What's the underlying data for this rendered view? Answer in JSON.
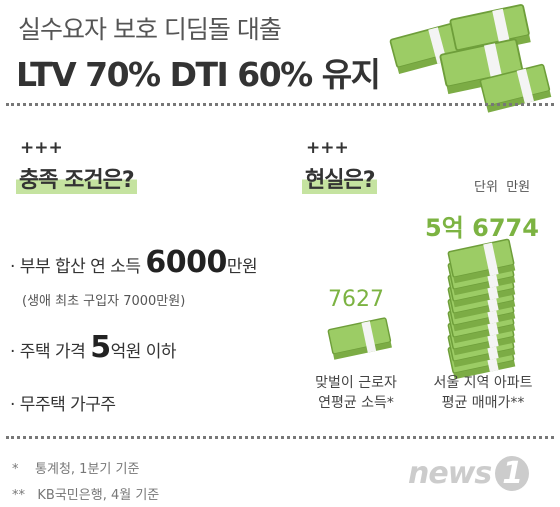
{
  "header": {
    "title_line1": "실수요자 보호 디딤돌 대출",
    "title_line2": "LTV 70% DTI 60% 유지"
  },
  "conditions": {
    "marker": "+++",
    "heading": "충족 조건은?",
    "items": [
      {
        "prefix": "· 부부 합산 연 소득",
        "highlight": "6000",
        "suffix": "만원",
        "note": "(생애 최초 구입자 7000만원)"
      },
      {
        "prefix": "· 주택 가격",
        "highlight": "5",
        "suffix": "억원 이하"
      },
      {
        "prefix": "· 무주택 가구주"
      }
    ]
  },
  "reality": {
    "marker": "+++",
    "heading": "현실은?",
    "unit_label": "단위",
    "unit": "만원",
    "items": [
      {
        "value": "7627",
        "caption": [
          "맞벌이 근로자",
          "연평균 소득*"
        ]
      },
      {
        "value": "5억 6774",
        "caption": [
          "서울 지역 아파트",
          "평균 매매가**"
        ]
      }
    ]
  },
  "footnotes": [
    {
      "mark": "*",
      "text": "통계청, 1분기 기준"
    },
    {
      "mark": "**",
      "text": "KB국민은행, 4월 기준"
    }
  ],
  "logo": {
    "word": "news",
    "number": "1"
  }
}
